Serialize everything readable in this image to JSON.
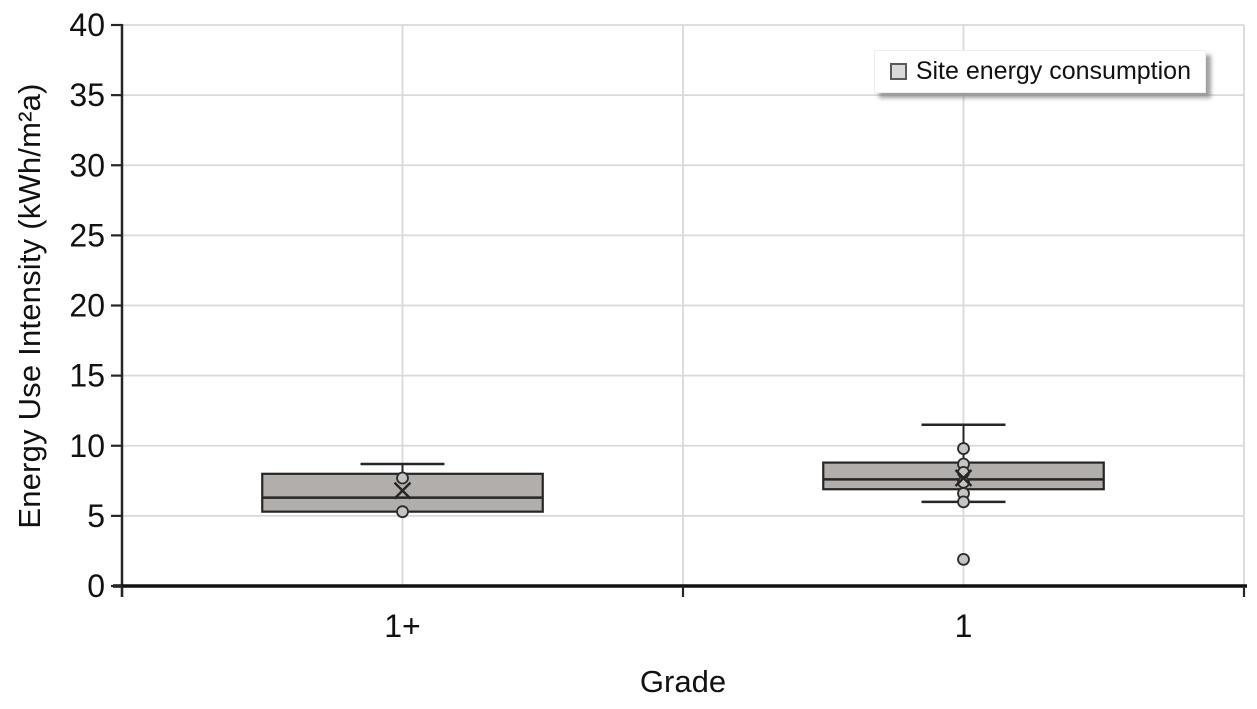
{
  "figure": {
    "background": "#ffffff"
  },
  "chart_data": {
    "type": "boxplot",
    "title": "",
    "xlabel": "Grade",
    "ylabel": "Energy Use Intensity (kWh/m²a)",
    "ylim": [
      0,
      40
    ],
    "yticks": [
      0,
      5,
      10,
      15,
      20,
      25,
      30,
      35,
      40
    ],
    "grid": true,
    "categories": [
      "1+",
      "1"
    ],
    "legend_position": "top-right",
    "legend": [
      {
        "label": "Site energy consumption",
        "marker": "square"
      }
    ],
    "mean_marker": "x",
    "point_marker": "circle",
    "series": [
      {
        "category": "1+",
        "whisker_low": 5.3,
        "q1": 5.3,
        "median": 6.3,
        "q3": 8.0,
        "whisker_high": 8.7,
        "mean": 6.8,
        "points": [
          7.7,
          5.3
        ],
        "outliers": []
      },
      {
        "category": "1",
        "whisker_low": 6.0,
        "q1": 6.9,
        "median": 7.6,
        "q3": 8.8,
        "whisker_high": 11.5,
        "mean": 7.7,
        "points": [
          9.8,
          8.7,
          8.1,
          7.4,
          6.6,
          6.0
        ],
        "outliers": [
          1.9
        ]
      }
    ],
    "colors": {
      "box_fill": "#b1aeab",
      "box_border": "#262626",
      "gridline": "#d9d9d9",
      "axis": "#262626",
      "x_axis": "#111111",
      "marker_fill": "#c6c4c2",
      "marker_border": "#2b2b2b",
      "text": "#111111",
      "legend_marker_fill": "#d9d9d9",
      "legend_marker_border": "#595959"
    }
  }
}
